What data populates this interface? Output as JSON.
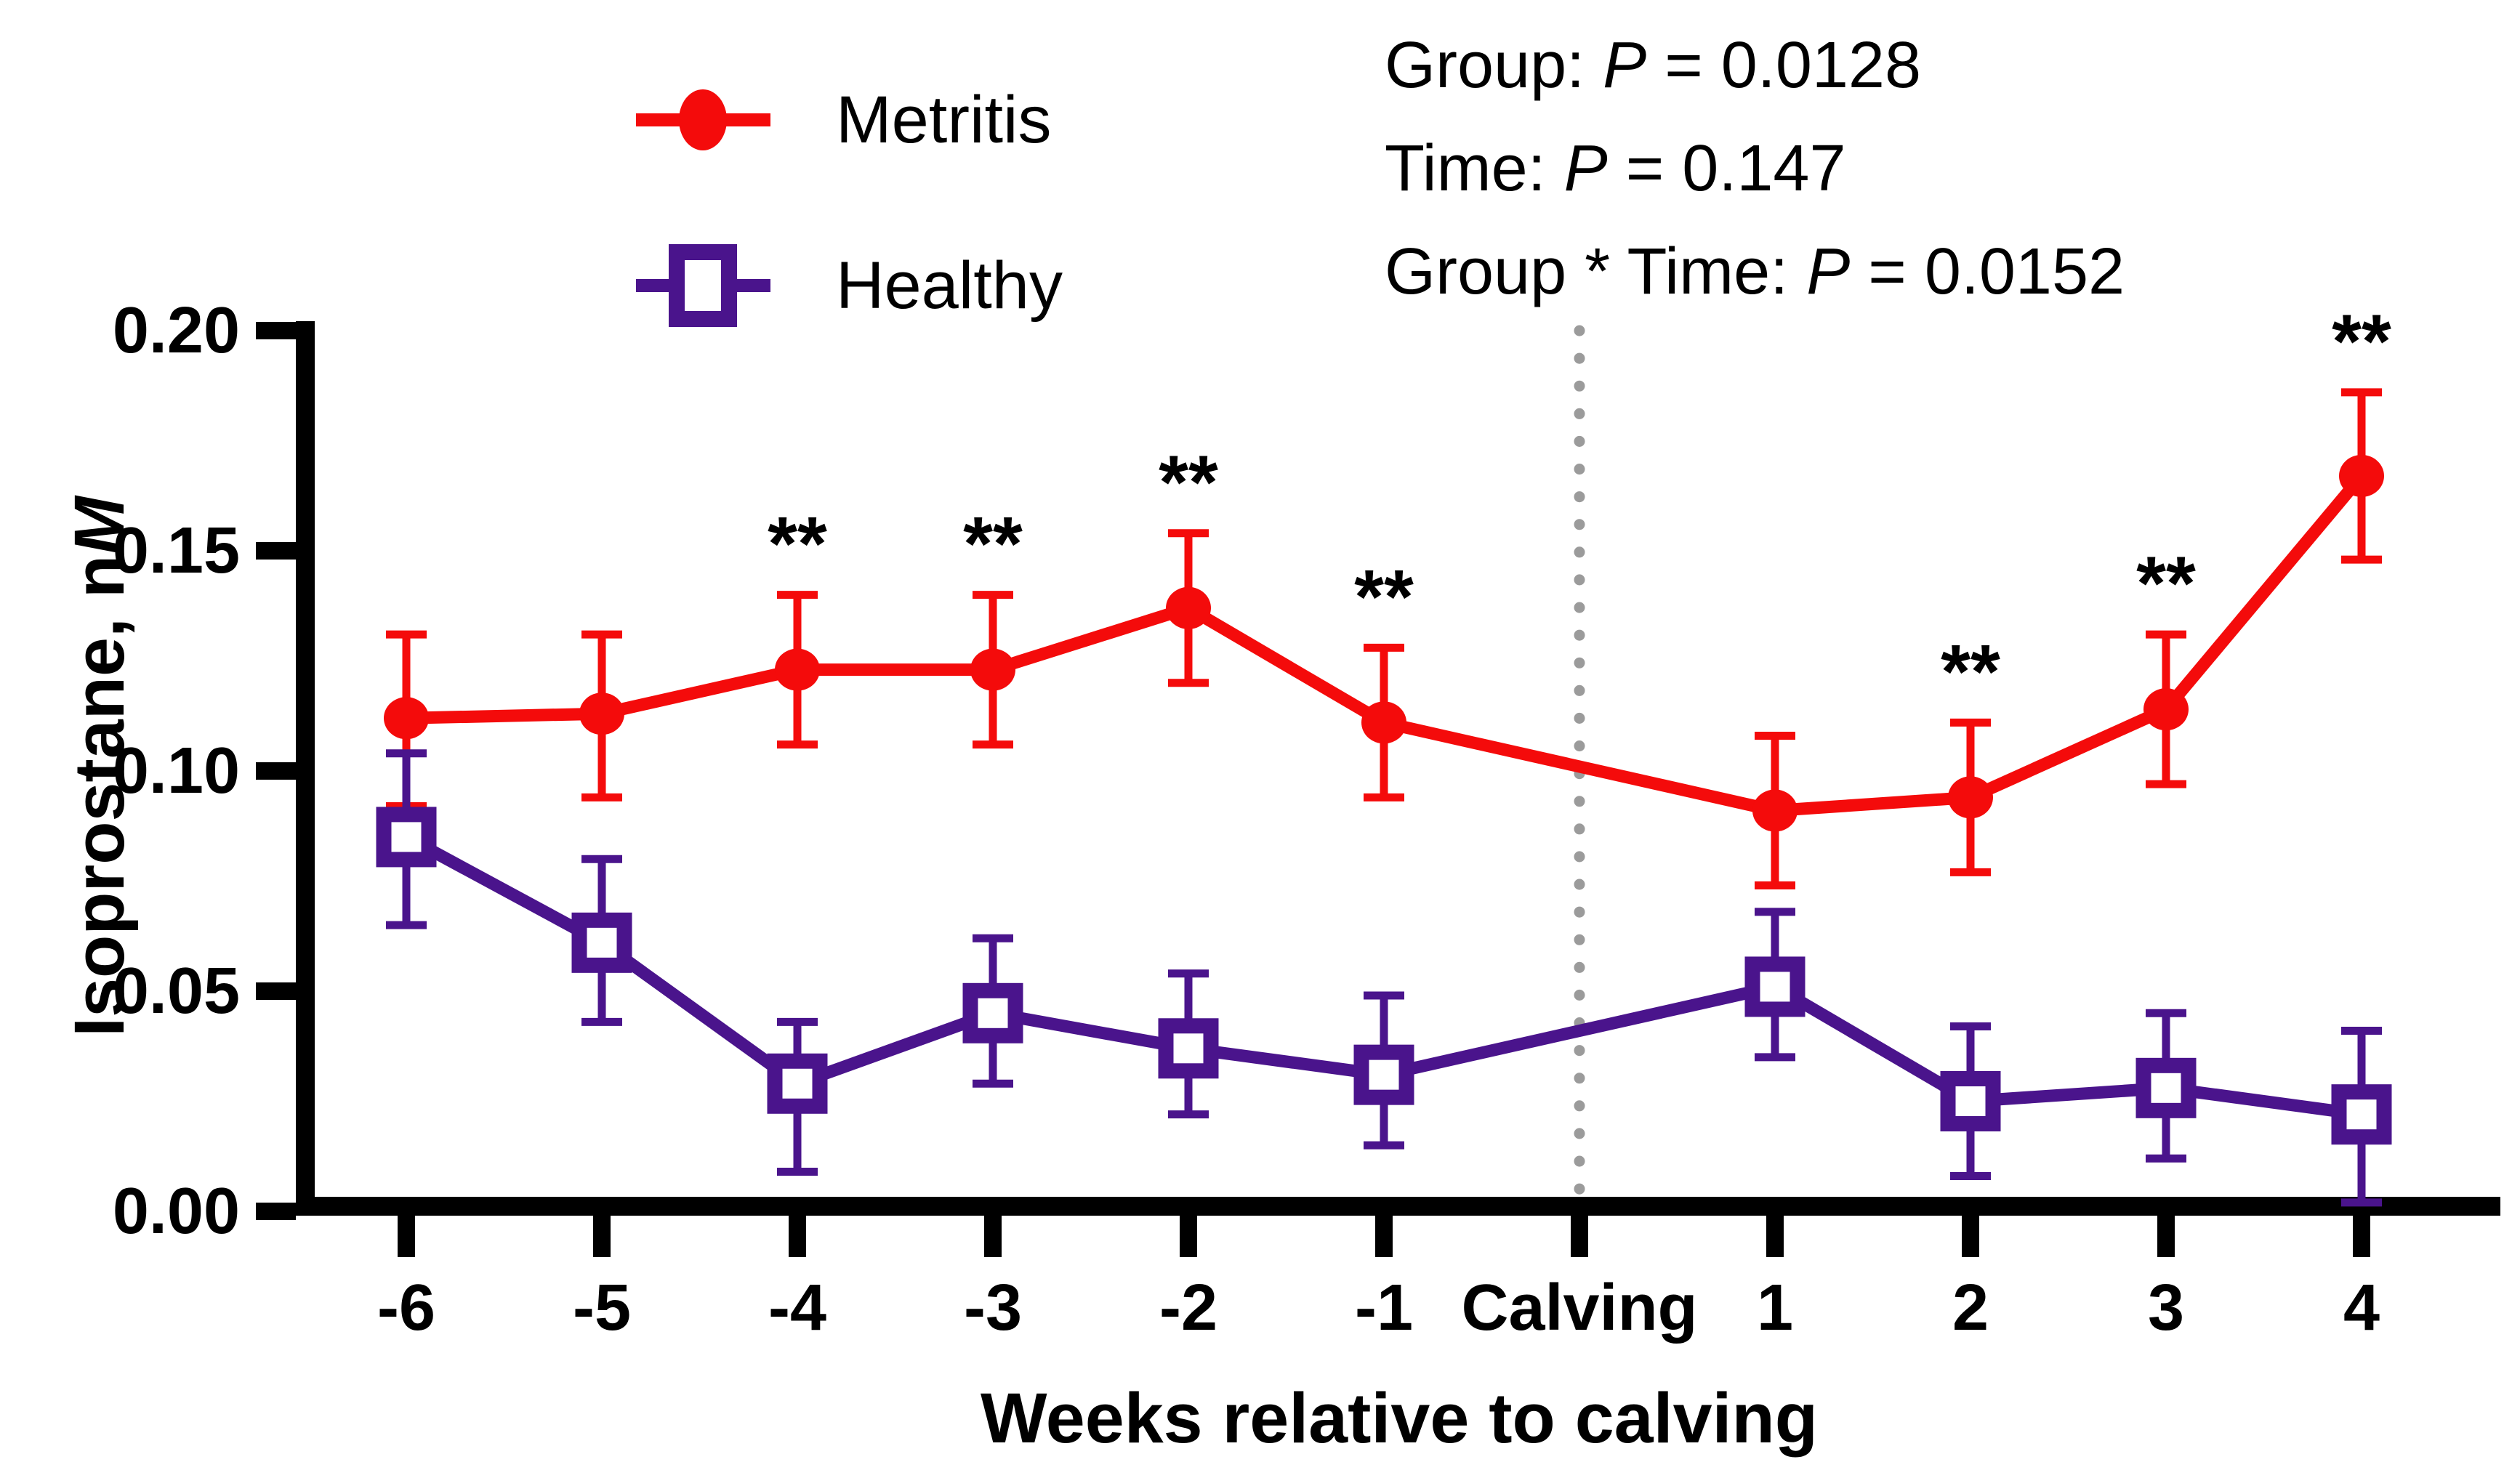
{
  "legend": {
    "items": [
      {
        "label": "Metritis",
        "color": "#f40b0b",
        "marker": "filled-circle-icon"
      },
      {
        "label": "Healthy",
        "color": "#4a148c",
        "marker": "open-square-icon"
      }
    ]
  },
  "stats": {
    "p_symbol": "P",
    "lines": [
      {
        "label": "Group: ",
        "value": " = 0.0128"
      },
      {
        "label": "Time: ",
        "value": " = 0.147"
      },
      {
        "label": "Group * Time: ",
        "value": " = 0.0152"
      }
    ]
  },
  "chart_data": {
    "type": "line",
    "title": "",
    "xlabel": "Weeks relative to calving",
    "ylabel_prefix": "Isoprostane, n",
    "ylabel_italic": "M",
    "x_categories": [
      "-6",
      "-5",
      "-4",
      "-3",
      "-2",
      "-1",
      "Calving",
      "1",
      "2",
      "3",
      "4"
    ],
    "y_ticks": [
      "0.00",
      "0.05",
      "0.10",
      "0.15",
      "0.20"
    ],
    "y_tick_values": [
      0.0,
      0.05,
      0.1,
      0.15,
      0.2
    ],
    "ylim": [
      0.0,
      0.2
    ],
    "grid": "off",
    "legend_position": "top-left-above-plot",
    "calving_divider": {
      "x_category": "Calving",
      "style": "dotted",
      "color": "#9b9b9b"
    },
    "significance_symbol": "**",
    "series": [
      {
        "name": "Metritis",
        "color": "#f40b0b",
        "marker": "filled-circle",
        "x": [
          -6,
          -5,
          -4,
          -3,
          -2,
          -1,
          1,
          2,
          3,
          4
        ],
        "values": [
          0.112,
          0.113,
          0.123,
          0.123,
          0.137,
          0.111,
          0.091,
          0.094,
          0.114,
          0.167
        ],
        "err_low": [
          0.092,
          0.094,
          0.106,
          0.106,
          0.12,
          0.094,
          0.074,
          0.077,
          0.097,
          0.148
        ],
        "err_high": [
          0.131,
          0.131,
          0.14,
          0.14,
          0.154,
          0.128,
          0.108,
          0.111,
          0.131,
          0.186
        ],
        "significance": [
          "",
          "",
          "**",
          "**",
          "**",
          "**",
          "",
          "**",
          "**",
          "**"
        ]
      },
      {
        "name": "Healthy",
        "color": "#4a148c",
        "marker": "open-square",
        "x": [
          -6,
          -5,
          -4,
          -3,
          -2,
          -1,
          1,
          2,
          3,
          4
        ],
        "values": [
          0.085,
          0.061,
          0.029,
          0.045,
          0.037,
          0.031,
          0.051,
          0.025,
          0.028,
          0.022
        ],
        "err_low": [
          0.065,
          0.043,
          0.009,
          0.029,
          0.022,
          0.015,
          0.035,
          0.008,
          0.012,
          0.002
        ],
        "err_high": [
          0.104,
          0.08,
          0.043,
          0.062,
          0.054,
          0.049,
          0.068,
          0.042,
          0.045,
          0.041
        ],
        "significance": [
          "",
          "",
          "",
          "",
          "",
          "",
          "",
          "",
          "",
          ""
        ]
      }
    ]
  }
}
